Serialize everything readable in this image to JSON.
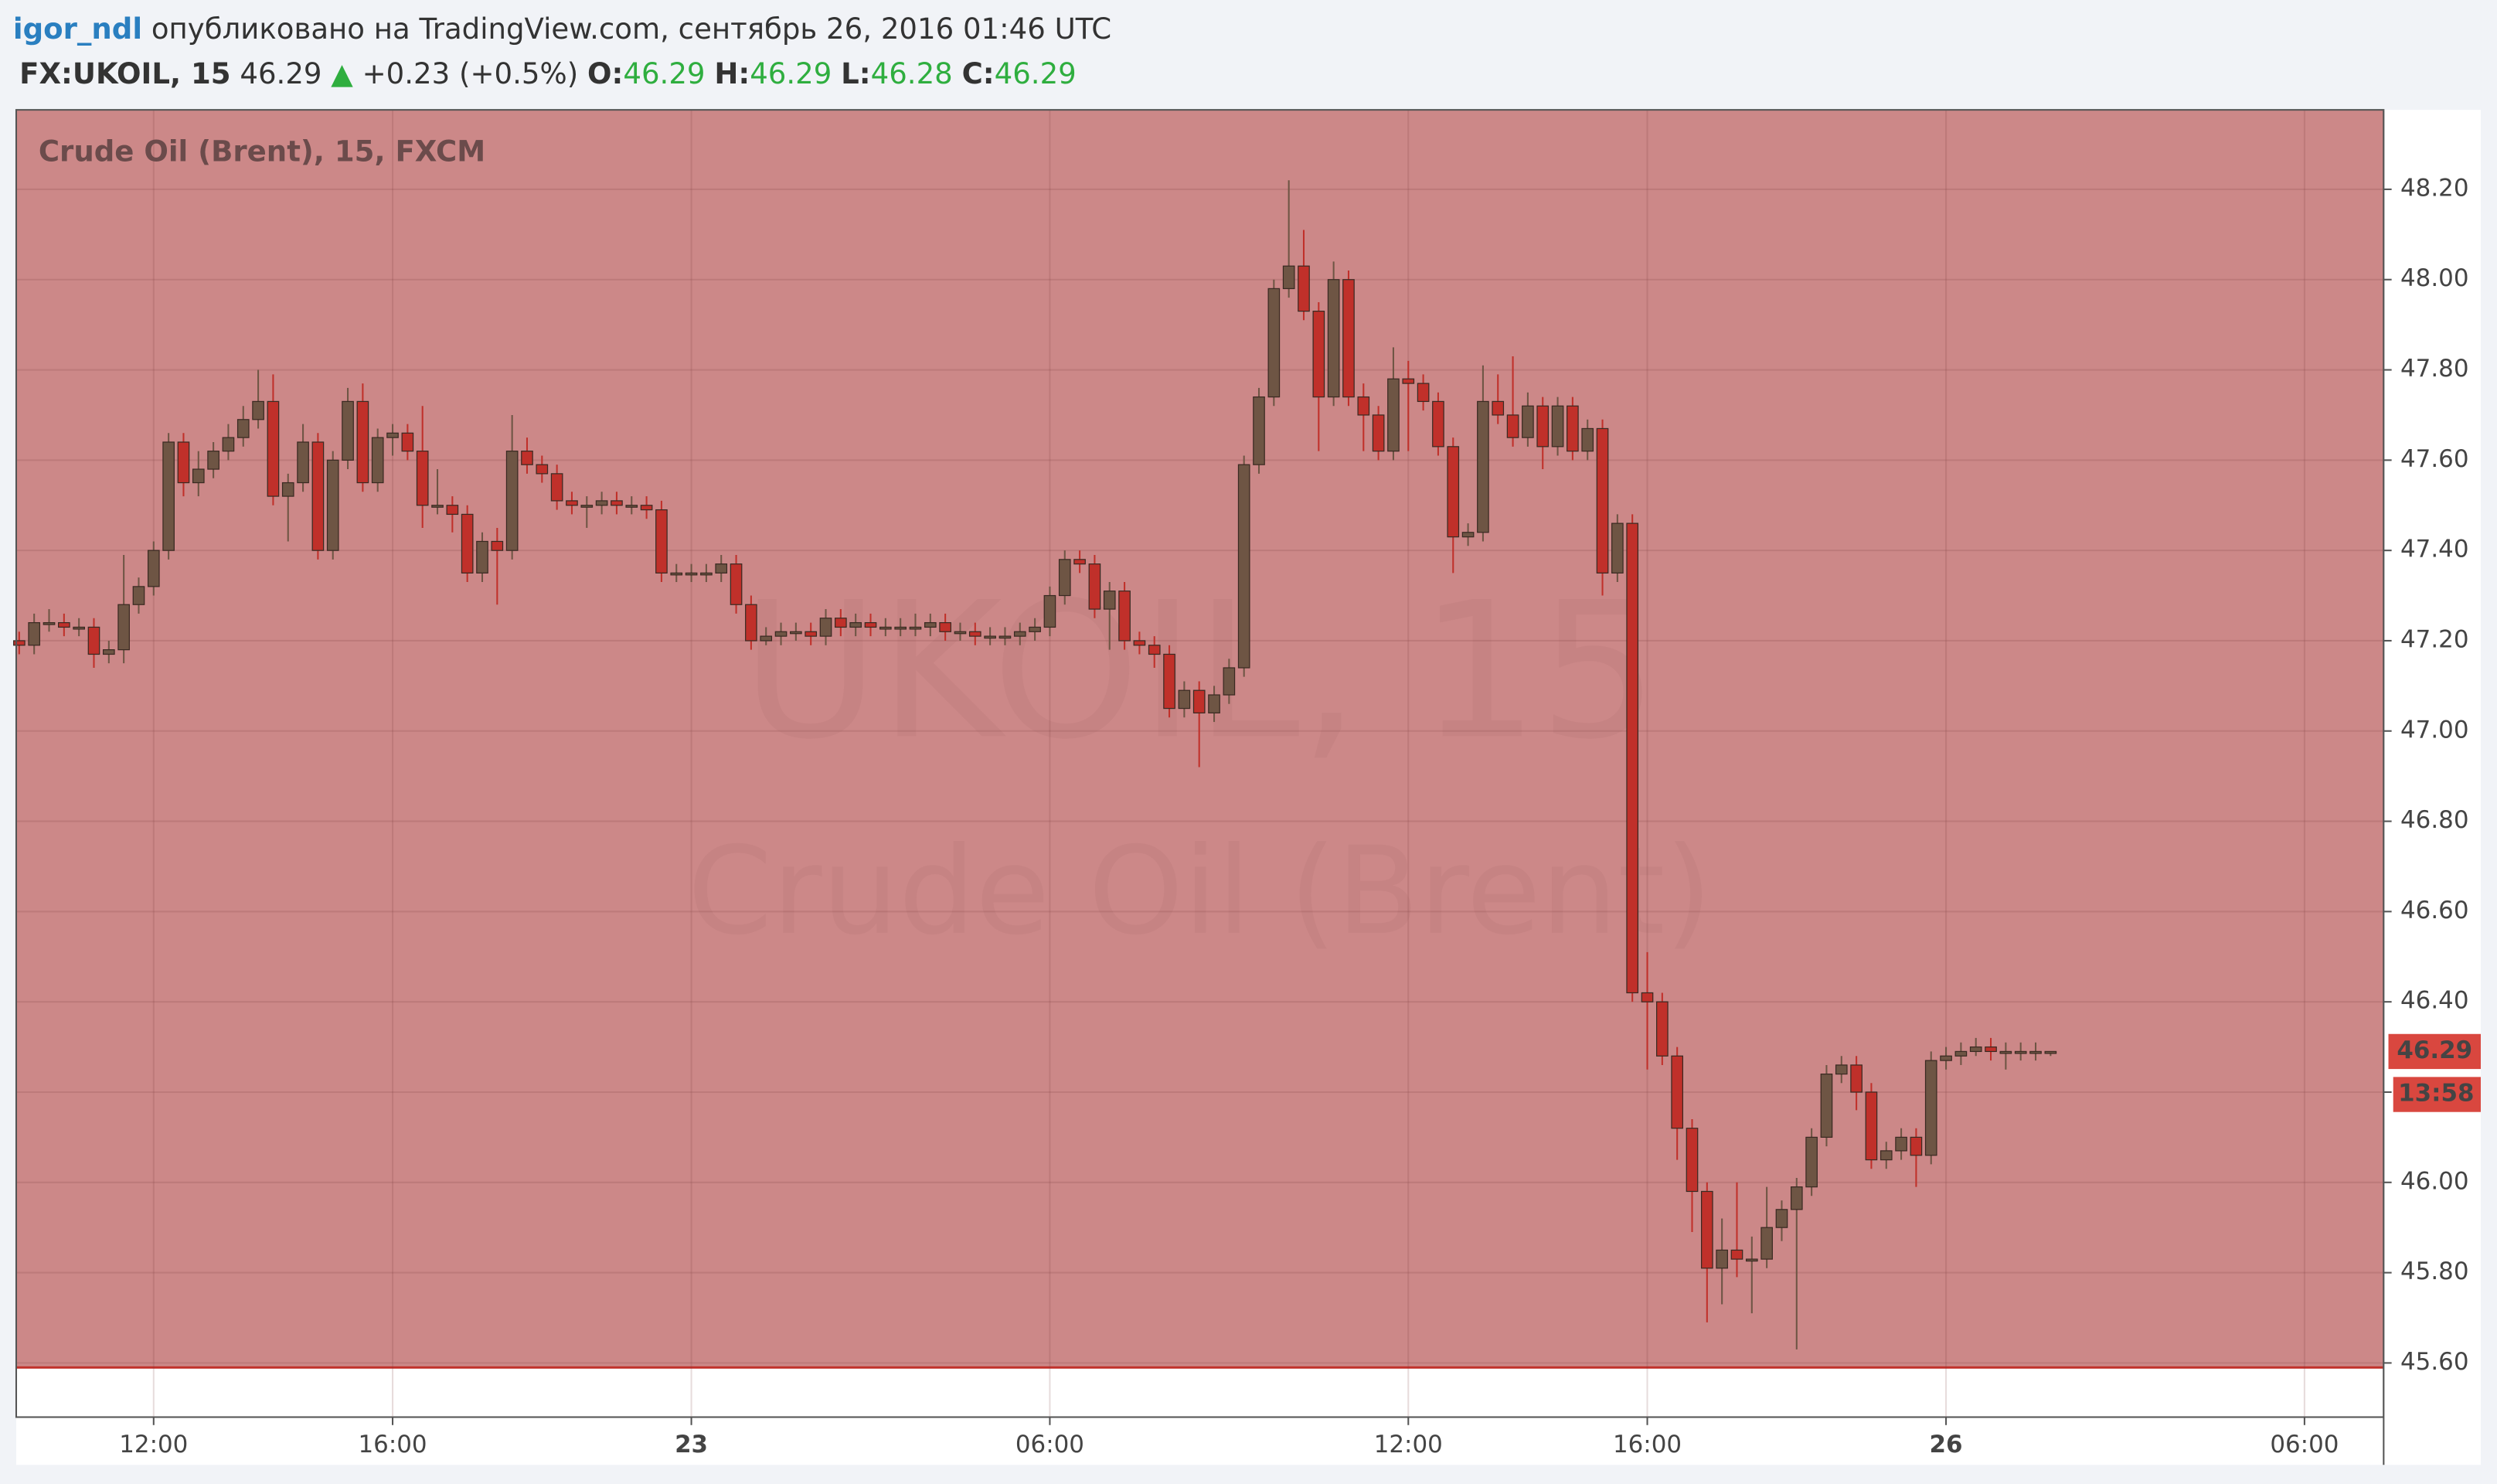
{
  "header": {
    "user": "igor_ndl",
    "published": "опубликовано на TradingView.com, сентябрь 26, 2016 01:46 UTC",
    "symbol": "FX:UKOIL, 15",
    "price": "46.29",
    "change": "+0.23 (+0.5%)",
    "ohlc": [
      {
        "label": "O:",
        "value": "46.29"
      },
      {
        "label": "H:",
        "value": "46.29"
      },
      {
        "label": "L:",
        "value": "46.28"
      },
      {
        "label": "C:",
        "value": "46.29"
      }
    ]
  },
  "chart_data": {
    "type": "candlestick",
    "title": "Crude Oil (Brent), 15, FXCM",
    "watermark": [
      "UKOIL, 15",
      "Crude Oil (Brent)"
    ],
    "up_color": "#6e5544",
    "down_color": "#c0302a",
    "background": "#cc8888",
    "shade_floor": 45.59,
    "open": [
      47.2,
      47.19,
      47.24,
      47.24,
      47.23,
      47.23,
      47.17,
      47.18,
      47.28,
      47.32,
      47.4,
      47.64,
      47.55,
      47.58,
      47.62,
      47.65,
      47.69,
      47.73,
      47.52,
      47.55,
      47.64,
      47.4,
      47.6,
      47.73,
      47.55,
      47.65,
      47.66,
      47.62,
      47.5,
      47.5,
      47.48,
      47.35,
      47.42,
      47.4,
      47.62,
      47.59,
      47.57,
      47.51,
      47.5,
      47.5,
      47.51,
      47.5,
      47.5,
      47.49,
      47.35,
      47.35,
      47.35,
      47.35,
      47.37,
      47.28,
      47.2,
      47.21,
      47.22,
      47.22,
      47.21,
      47.25,
      47.23,
      47.24,
      47.23,
      47.23,
      47.23,
      47.23,
      47.24,
      47.22,
      47.22,
      47.21,
      47.21,
      47.21,
      47.22,
      47.23,
      47.3,
      47.38,
      47.37,
      47.27,
      47.31,
      47.2,
      47.19,
      47.17,
      47.05,
      47.09,
      47.04,
      47.08,
      47.14,
      47.59,
      47.74,
      47.98,
      48.03,
      47.93,
      47.74,
      48.0,
      47.74,
      47.7,
      47.62,
      47.78,
      47.77,
      47.73,
      47.63,
      47.43,
      47.44,
      47.73,
      47.7,
      47.65,
      47.72,
      47.63,
      47.72,
      47.62,
      47.67,
      47.35,
      47.46,
      46.42,
      46.4,
      46.28,
      46.12,
      45.98,
      45.81,
      45.85,
      45.83,
      45.83,
      45.9,
      45.94,
      45.99,
      46.1,
      46.24,
      46.26,
      46.2,
      46.05,
      46.07,
      46.1,
      46.06,
      46.27,
      46.28,
      46.29,
      46.3,
      46.29,
      46.29,
      46.29,
      46.29
    ],
    "high": [
      47.22,
      47.26,
      47.27,
      47.26,
      47.25,
      47.25,
      47.2,
      47.39,
      47.34,
      47.42,
      47.66,
      47.66,
      47.62,
      47.64,
      47.68,
      47.72,
      47.8,
      47.79,
      47.57,
      47.68,
      47.66,
      47.62,
      47.76,
      47.77,
      47.67,
      47.68,
      47.68,
      47.72,
      47.58,
      47.52,
      47.5,
      47.44,
      47.45,
      47.7,
      47.65,
      47.61,
      47.59,
      47.53,
      47.52,
      47.53,
      47.53,
      47.52,
      47.52,
      47.51,
      47.37,
      47.37,
      47.37,
      47.39,
      47.39,
      47.3,
      47.23,
      47.24,
      47.24,
      47.24,
      47.27,
      47.27,
      47.26,
      47.26,
      47.25,
      47.25,
      47.26,
      47.26,
      47.26,
      47.24,
      47.24,
      47.23,
      47.23,
      47.24,
      47.25,
      47.32,
      47.4,
      47.4,
      47.39,
      47.33,
      47.33,
      47.22,
      47.21,
      47.19,
      47.11,
      47.11,
      47.1,
      47.16,
      47.61,
      47.76,
      48.0,
      48.22,
      48.11,
      47.95,
      48.04,
      48.02,
      47.77,
      47.72,
      47.85,
      47.82,
      47.79,
      47.75,
      47.65,
      47.46,
      47.81,
      47.79,
      47.83,
      47.75,
      47.74,
      47.74,
      47.74,
      47.69,
      47.69,
      47.48,
      47.48,
      46.51,
      46.42,
      46.3,
      46.14,
      46.0,
      45.92,
      46.0,
      45.88,
      45.99,
      45.96,
      46.01,
      46.12,
      46.26,
      46.28,
      46.28,
      46.22,
      46.09,
      46.12,
      46.12,
      46.29,
      46.3,
      46.31,
      46.32,
      46.32,
      46.31,
      46.31,
      46.31,
      46.29
    ],
    "low": [
      47.17,
      47.17,
      47.22,
      47.21,
      47.21,
      47.14,
      47.15,
      47.15,
      47.26,
      47.3,
      47.38,
      47.52,
      47.52,
      47.56,
      47.6,
      47.63,
      47.67,
      47.5,
      47.42,
      47.53,
      47.38,
      47.38,
      47.58,
      47.53,
      47.53,
      47.61,
      47.6,
      47.45,
      47.48,
      47.44,
      47.33,
      47.33,
      47.28,
      47.38,
      47.57,
      47.55,
      47.49,
      47.48,
      47.45,
      47.48,
      47.48,
      47.48,
      47.47,
      47.33,
      47.33,
      47.33,
      47.33,
      47.33,
      47.26,
      47.18,
      47.19,
      47.19,
      47.2,
      47.19,
      47.19,
      47.21,
      47.21,
      47.21,
      47.21,
      47.21,
      47.21,
      47.21,
      47.2,
      47.2,
      47.19,
      47.19,
      47.19,
      47.19,
      47.2,
      47.21,
      47.28,
      47.35,
      47.25,
      47.18,
      47.18,
      47.17,
      47.14,
      47.03,
      47.03,
      46.92,
      47.02,
      47.06,
      47.12,
      47.57,
      47.72,
      47.96,
      47.91,
      47.62,
      47.72,
      47.72,
      47.62,
      47.6,
      47.6,
      47.62,
      47.71,
      47.61,
      47.35,
      47.41,
      47.42,
      47.68,
      47.63,
      47.63,
      47.58,
      47.61,
      47.6,
      47.6,
      47.3,
      47.33,
      46.4,
      46.25,
      46.26,
      46.05,
      45.89,
      45.69,
      45.73,
      45.79,
      45.71,
      45.81,
      45.87,
      45.63,
      45.97,
      46.08,
      46.22,
      46.16,
      46.03,
      46.03,
      46.05,
      45.99,
      46.04,
      46.25,
      46.26,
      46.28,
      46.27,
      46.25,
      46.27,
      46.27,
      46.28
    ],
    "close": [
      47.19,
      47.24,
      47.24,
      47.23,
      47.23,
      47.17,
      47.18,
      47.28,
      47.32,
      47.4,
      47.64,
      47.55,
      47.58,
      47.62,
      47.65,
      47.69,
      47.73,
      47.52,
      47.55,
      47.64,
      47.4,
      47.6,
      47.73,
      47.55,
      47.65,
      47.66,
      47.62,
      47.5,
      47.5,
      47.48,
      47.35,
      47.42,
      47.4,
      47.62,
      47.59,
      47.57,
      47.51,
      47.5,
      47.5,
      47.51,
      47.5,
      47.5,
      47.49,
      47.35,
      47.35,
      47.35,
      47.35,
      47.37,
      47.28,
      47.2,
      47.21,
      47.22,
      47.22,
      47.21,
      47.25,
      47.23,
      47.24,
      47.23,
      47.23,
      47.23,
      47.23,
      47.24,
      47.22,
      47.22,
      47.21,
      47.21,
      47.21,
      47.22,
      47.23,
      47.3,
      47.38,
      47.37,
      47.27,
      47.31,
      47.2,
      47.19,
      47.17,
      47.05,
      47.09,
      47.04,
      47.08,
      47.14,
      47.59,
      47.74,
      47.98,
      48.03,
      47.93,
      47.74,
      48.0,
      47.74,
      47.7,
      47.62,
      47.78,
      47.77,
      47.73,
      47.63,
      47.43,
      47.44,
      47.73,
      47.7,
      47.65,
      47.72,
      47.63,
      47.72,
      47.62,
      47.67,
      47.35,
      47.46,
      46.42,
      46.4,
      46.28,
      46.12,
      45.98,
      45.81,
      45.85,
      45.83,
      45.83,
      45.9,
      45.94,
      45.99,
      46.1,
      46.24,
      46.26,
      46.2,
      46.05,
      46.07,
      46.1,
      46.06,
      46.27,
      46.28,
      46.29,
      46.3,
      46.29,
      46.29,
      46.29,
      46.29,
      46.29
    ],
    "xlim": [
      -0.2,
      158.3
    ],
    "xticks": [
      {
        "value": 9,
        "label": "12:00"
      },
      {
        "value": 25,
        "label": "16:00"
      },
      {
        "value": 45,
        "label": "23"
      },
      {
        "value": 69,
        "label": "06:00"
      },
      {
        "value": 93,
        "label": "12:00"
      },
      {
        "value": 109,
        "label": "16:00"
      },
      {
        "value": 129,
        "label": "26"
      },
      {
        "value": 153,
        "label": "06:00"
      }
    ],
    "ylim": [
      45.48,
      48.376
    ],
    "yticks": [
      {
        "value": 45.6,
        "label": "45.60"
      },
      {
        "value": 45.8,
        "label": "45.80"
      },
      {
        "value": 46,
        "label": "46.00"
      },
      {
        "value": 46.2,
        "label": "46.20"
      },
      {
        "value": 46.4,
        "label": "46.40"
      },
      {
        "value": 46.6,
        "label": "46.60"
      },
      {
        "value": 46.8,
        "label": "46.80"
      },
      {
        "value": 47,
        "label": "47.00"
      },
      {
        "value": 47.2,
        "label": "47.20"
      },
      {
        "value": 47.4,
        "label": "47.40"
      },
      {
        "value": 47.6,
        "label": "47.60"
      },
      {
        "value": 47.8,
        "label": "47.80"
      },
      {
        "value": 48,
        "label": "48.00"
      },
      {
        "value": 48.2,
        "label": "48.20"
      }
    ],
    "last_price": 46.29,
    "last_price_color": "#d9473f",
    "countdown": "13:58",
    "grid": true
  }
}
